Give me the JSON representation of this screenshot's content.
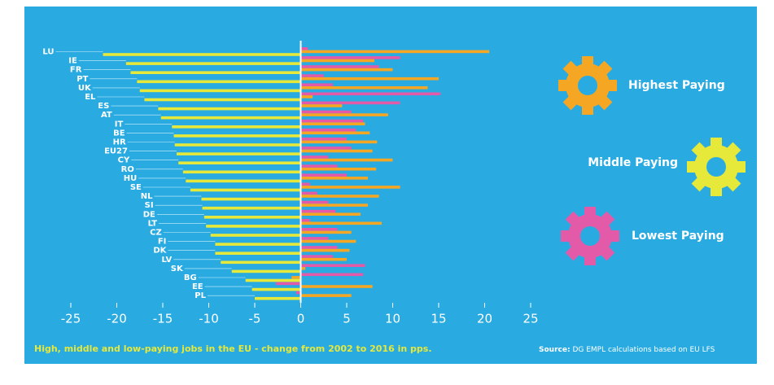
{
  "chart_data": {
    "type": "hbar",
    "categories": [
      "LU",
      "IE",
      "FR",
      "PT",
      "UK",
      "EL",
      "ES",
      "AT",
      "IT",
      "BE",
      "HR",
      "EU27",
      "CY",
      "RO",
      "HU",
      "SE",
      "NL",
      "SI",
      "DE",
      "LT",
      "CZ",
      "FI",
      "DK",
      "LV",
      "SK",
      "BG",
      "EE",
      "PL"
    ],
    "series": [
      {
        "name": "Highest Paying",
        "color": "#f5a623",
        "values": [
          20.5,
          8,
          10,
          15,
          13.8,
          1.3,
          4.5,
          9.5,
          7,
          7.5,
          8.3,
          7.8,
          10,
          8.2,
          7.3,
          10.8,
          8.5,
          7.3,
          6.5,
          8.8,
          5.5,
          6,
          5.3,
          5,
          0.5,
          -1,
          7.8,
          5.5
        ]
      },
      {
        "name": "Middle Paying",
        "color": "#e6e83a",
        "values": [
          -21.5,
          -19,
          -18.5,
          -17.8,
          -17.5,
          -17,
          -15.5,
          -15.2,
          -14,
          -13.8,
          -13.7,
          -13.5,
          -13.3,
          -12.8,
          -12.5,
          -12,
          -10.8,
          -10.7,
          -10.5,
          -10.3,
          -9.8,
          -9.3,
          -9.3,
          -8.7,
          -7.5,
          -6,
          -5.3,
          -5
        ]
      },
      {
        "name": "Lowest Paying",
        "color": "#e35ba8",
        "values": [
          0.8,
          10.8,
          8.5,
          2.5,
          3.5,
          15.2,
          10.8,
          5.5,
          6.8,
          6,
          5,
          5.5,
          3,
          4,
          5,
          1,
          1.8,
          3,
          3.8,
          1,
          4,
          3,
          4,
          3.5,
          7,
          6.8,
          -2.7,
          -0.5
        ]
      }
    ],
    "xlim": [
      -25,
      25
    ],
    "xticks": [
      -25,
      -20,
      -15,
      -10,
      -5,
      0,
      5,
      10,
      15,
      20,
      25
    ],
    "caption": "High, middle and low-paying jobs in the EU - change from 2002 to 2016 in pps.",
    "source_label": "Source:",
    "source": "DG EMPL calculations based on EU LFS"
  }
}
